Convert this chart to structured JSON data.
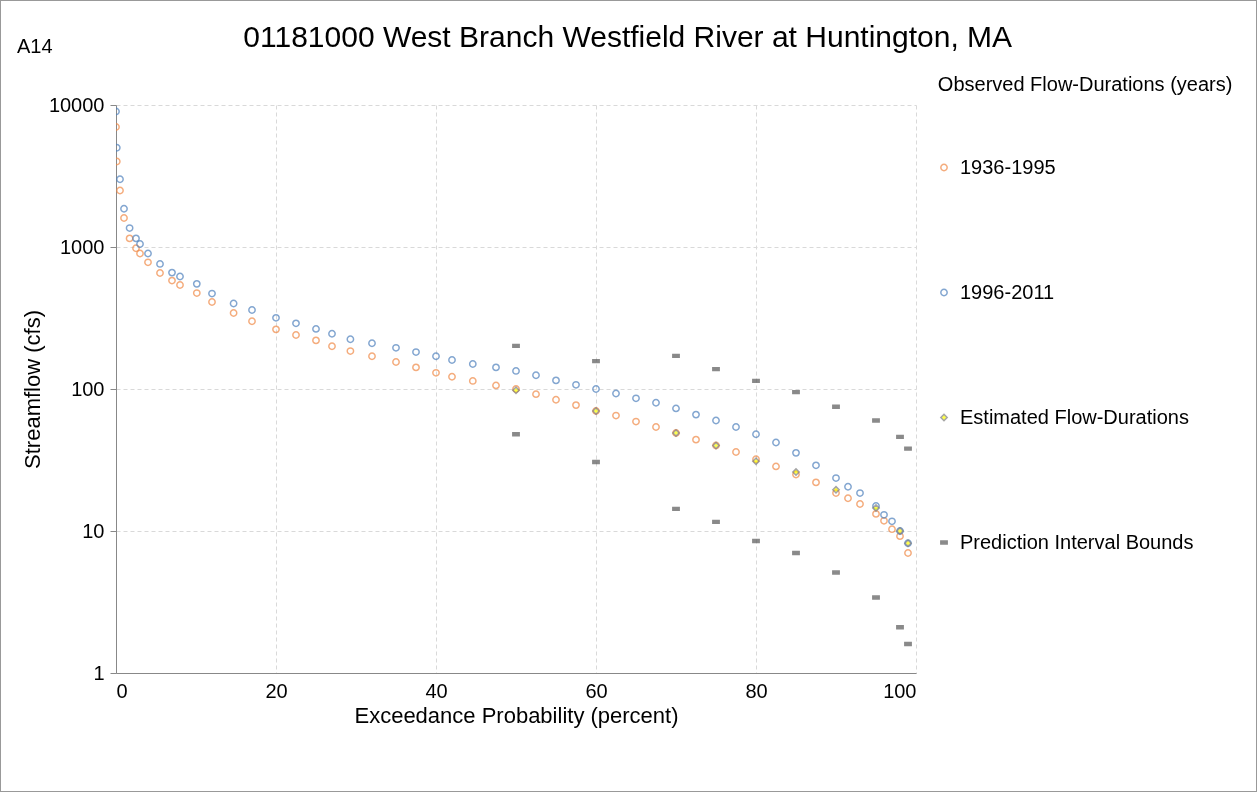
{
  "chart_data": {
    "type": "scatter",
    "title": "01181000 West Branch Westfield River at Huntington, MA",
    "annotations": [
      "A14"
    ],
    "xlabel": "Exceedance Probability (percent)",
    "ylabel": "Streamflow (cfs)",
    "legend_title": "Observed Flow-Durations (years)",
    "xlim": [
      0,
      100
    ],
    "xticks": [
      0,
      20,
      40,
      60,
      80,
      100
    ],
    "ylim": [
      1,
      10000
    ],
    "yticks": [
      1,
      10,
      100,
      1000,
      10000
    ],
    "log": "y",
    "grid": true,
    "legend": "right",
    "x": [
      0,
      0.1,
      0.5,
      1,
      1.7,
      2.5,
      3,
      4,
      5.5,
      7,
      8,
      10.1,
      12,
      14.7,
      17,
      20,
      22.5,
      25,
      27,
      29.3,
      32,
      35,
      37.5,
      40,
      42,
      44.6,
      47.5,
      50,
      52.5,
      55,
      57.5,
      60,
      62.5,
      65,
      67.5,
      70,
      72.5,
      75,
      77.5,
      80,
      82.5,
      85,
      87.5,
      90,
      91.5,
      93,
      95,
      96,
      97,
      98,
      99
    ],
    "series": [
      {
        "name": "1936-1995",
        "color": "#f08a47",
        "marker": "circle",
        "values": [
          7000,
          4000,
          2500,
          1600,
          1150,
          980,
          900,
          780,
          656,
          580,
          540,
          474,
          410,
          343,
          300,
          263,
          240,
          220,
          200,
          185,
          170,
          155,
          142,
          130,
          122,
          114,
          106,
          100,
          92,
          84,
          77,
          70,
          65,
          59,
          54,
          49,
          44,
          40,
          36,
          32,
          28.5,
          25,
          22,
          18.5,
          17,
          15.5,
          13.2,
          11.8,
          10.3,
          9.2,
          7
        ]
      },
      {
        "name": "1996-2011",
        "color": "#4f81bd",
        "marker": "circle",
        "values": [
          9000,
          5000,
          3000,
          1860,
          1360,
          1150,
          1050,
          900,
          760,
          660,
          620,
          550,
          470,
          400,
          360,
          317,
          290,
          265,
          245,
          224,
          210,
          195,
          182,
          170,
          160,
          150,
          142,
          134,
          125,
          115,
          107,
          100,
          93,
          86,
          80,
          73,
          66,
          60,
          54,
          48,
          42,
          35.5,
          29,
          23.6,
          20.5,
          18.5,
          15,
          13,
          11.7,
          10,
          8.2
        ]
      },
      {
        "name": "Estimated Flow-Durations",
        "color": "#ffff00",
        "marker": "diamond",
        "x": [
          50,
          60,
          70,
          75,
          80,
          85,
          90,
          95,
          98,
          99
        ],
        "values": [
          98,
          70,
          49,
          40,
          31,
          26,
          19.5,
          14.5,
          10,
          8.2
        ]
      },
      {
        "name": "Prediction Interval Bounds",
        "color": "#595959",
        "x": [
          50,
          60,
          70,
          75,
          80,
          85,
          90,
          95,
          98,
          99,
          50,
          60,
          70,
          75,
          80,
          85,
          90,
          95,
          98,
          99
        ],
        "values": [
          201,
          157,
          171,
          138,
          114,
          95,
          75,
          60,
          46,
          38,
          48,
          30.6,
          14.3,
          11.6,
          8.5,
          7.0,
          5.1,
          3.4,
          2.1,
          1.6
        ]
      }
    ]
  }
}
